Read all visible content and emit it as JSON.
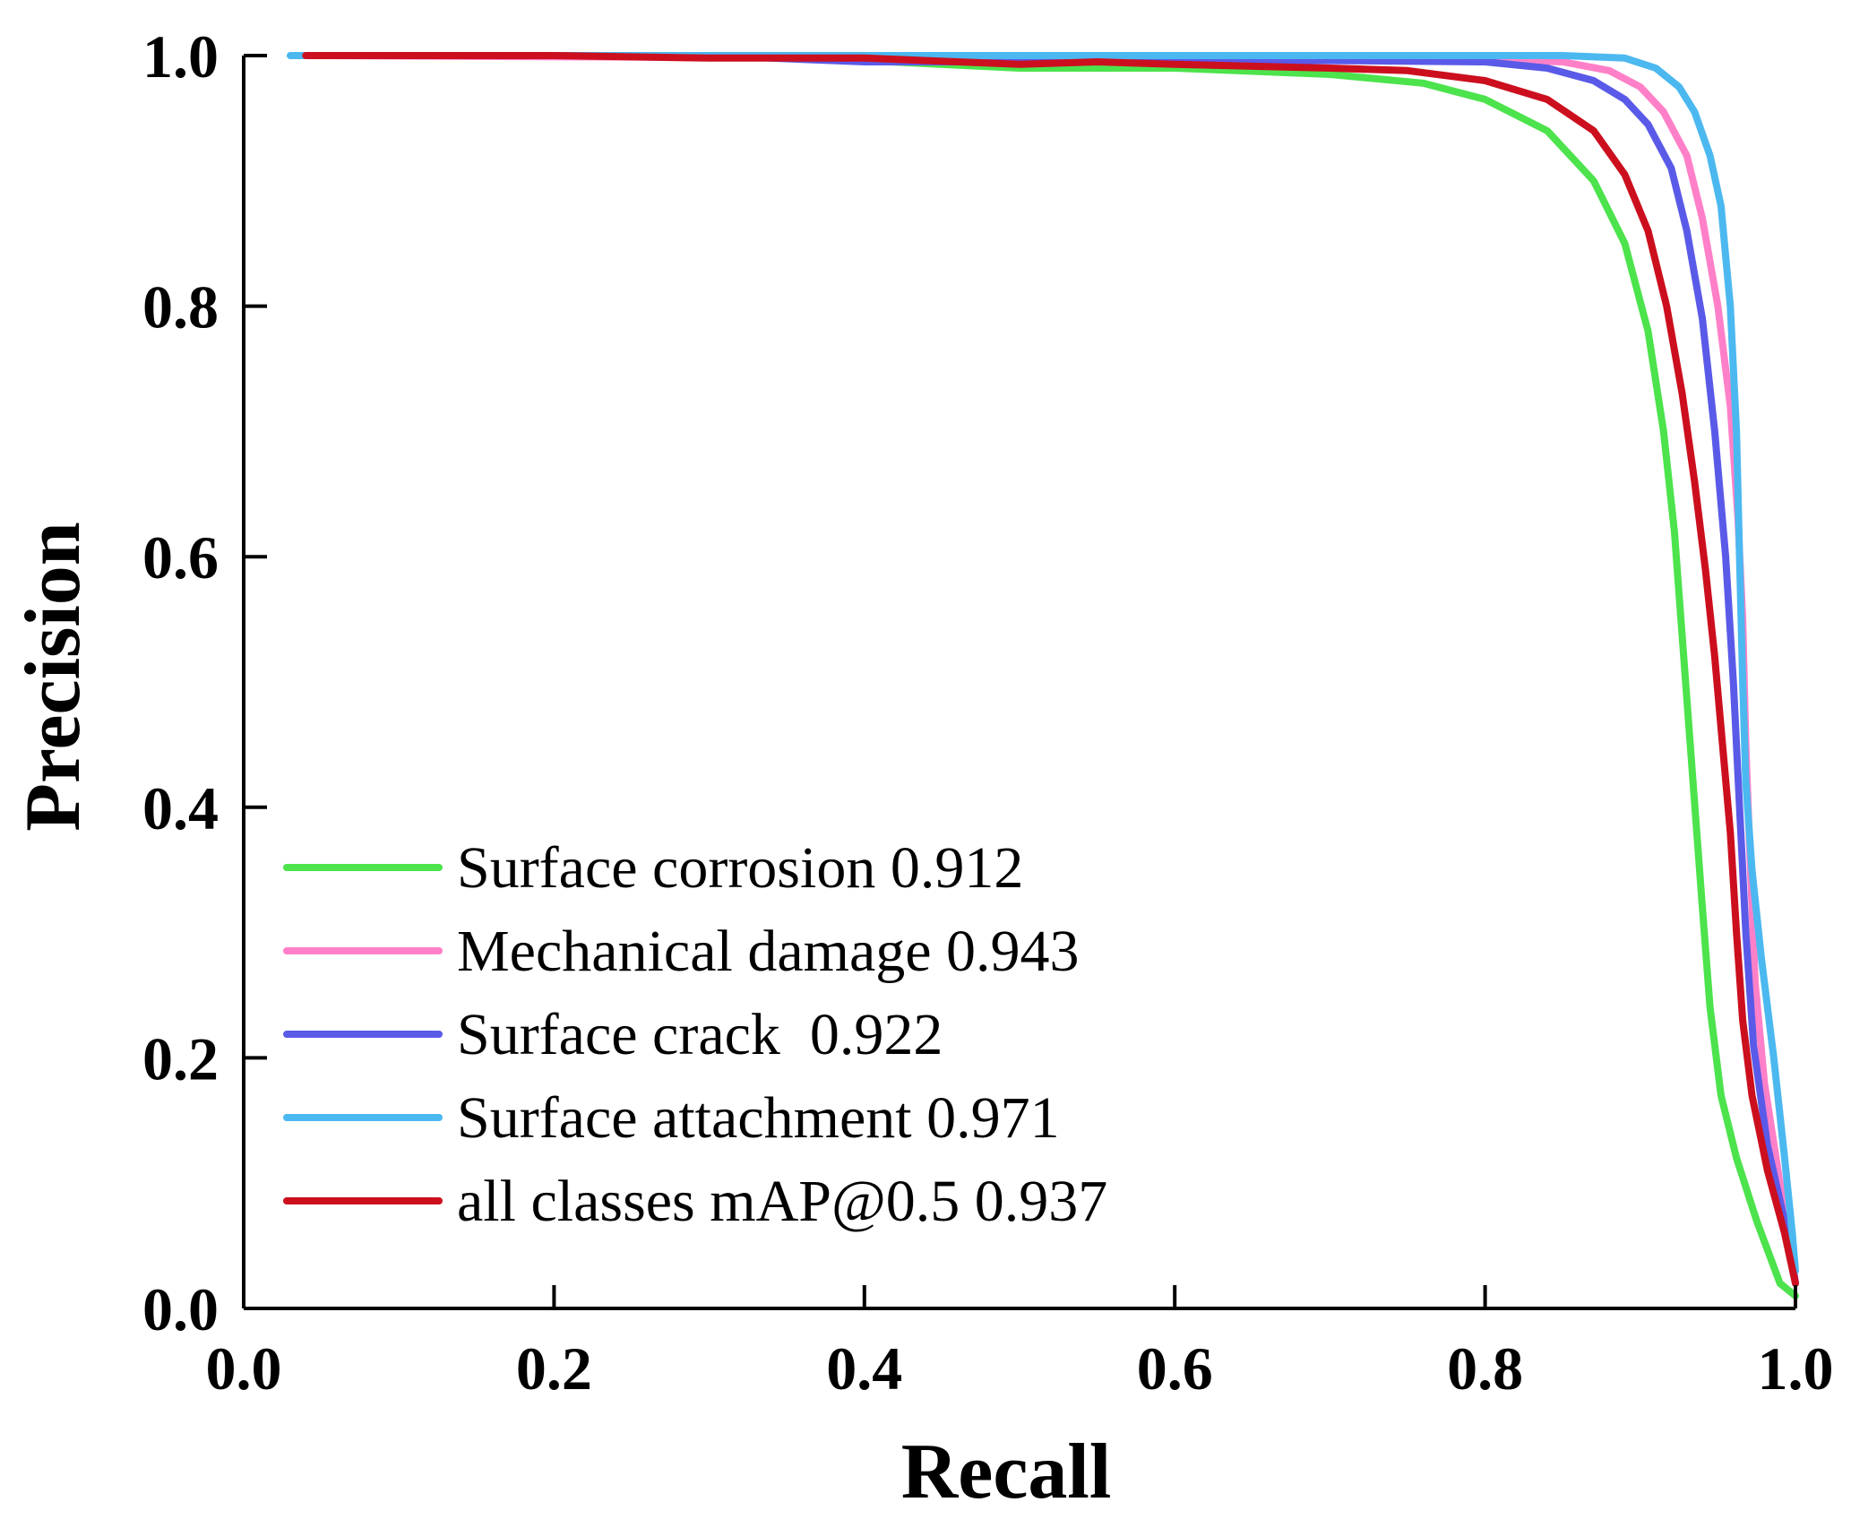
{
  "chart_data": {
    "type": "line",
    "xlabel": "Recall",
    "ylabel": "Precision",
    "xlim": [
      0.0,
      1.0
    ],
    "ylim": [
      0.0,
      1.0
    ],
    "grid": false,
    "legend_position": "bottom-left",
    "x_ticks": [
      "0.0",
      "0.2",
      "0.4",
      "0.6",
      "0.8",
      "1.0"
    ],
    "y_ticks": [
      "0.0",
      "0.2",
      "0.4",
      "0.6",
      "0.8",
      "1.0"
    ],
    "series": [
      {
        "name": "Surface corrosion 0.912",
        "color": "#4ce34c",
        "points": [
          [
            0.04,
            1.0
          ],
          [
            0.2,
            1.0
          ],
          [
            0.3,
            1.0
          ],
          [
            0.4,
            0.996
          ],
          [
            0.5,
            0.99
          ],
          [
            0.6,
            0.99
          ],
          [
            0.7,
            0.985
          ],
          [
            0.76,
            0.978
          ],
          [
            0.8,
            0.965
          ],
          [
            0.84,
            0.94
          ],
          [
            0.87,
            0.9
          ],
          [
            0.89,
            0.85
          ],
          [
            0.905,
            0.78
          ],
          [
            0.915,
            0.7
          ],
          [
            0.922,
            0.62
          ],
          [
            0.928,
            0.52
          ],
          [
            0.934,
            0.42
          ],
          [
            0.94,
            0.32
          ],
          [
            0.945,
            0.24
          ],
          [
            0.952,
            0.17
          ],
          [
            0.962,
            0.12
          ],
          [
            0.975,
            0.07
          ],
          [
            0.99,
            0.02
          ],
          [
            1.0,
            0.01
          ]
        ]
      },
      {
        "name": "Mechanical damage 0.943",
        "color": "#ff80c8",
        "points": [
          [
            0.04,
            1.0
          ],
          [
            0.4,
            0.998
          ],
          [
            0.6,
            0.998
          ],
          [
            0.8,
            0.997
          ],
          [
            0.85,
            0.995
          ],
          [
            0.88,
            0.988
          ],
          [
            0.9,
            0.975
          ],
          [
            0.915,
            0.955
          ],
          [
            0.93,
            0.92
          ],
          [
            0.94,
            0.87
          ],
          [
            0.95,
            0.8
          ],
          [
            0.958,
            0.72
          ],
          [
            0.963,
            0.63
          ],
          [
            0.966,
            0.55
          ],
          [
            0.968,
            0.45
          ],
          [
            0.971,
            0.35
          ],
          [
            0.974,
            0.26
          ],
          [
            0.98,
            0.18
          ],
          [
            0.99,
            0.1
          ],
          [
            0.997,
            0.05
          ],
          [
            1.0,
            0.02
          ]
        ]
      },
      {
        "name": "Surface crack  0.922",
        "color": "#5a5ae8",
        "points": [
          [
            0.04,
            1.0
          ],
          [
            0.3,
            1.0
          ],
          [
            0.4,
            0.995
          ],
          [
            0.5,
            0.995
          ],
          [
            0.6,
            0.996
          ],
          [
            0.7,
            0.996
          ],
          [
            0.8,
            0.995
          ],
          [
            0.84,
            0.99
          ],
          [
            0.87,
            0.98
          ],
          [
            0.89,
            0.965
          ],
          [
            0.905,
            0.945
          ],
          [
            0.92,
            0.91
          ],
          [
            0.93,
            0.86
          ],
          [
            0.94,
            0.79
          ],
          [
            0.948,
            0.7
          ],
          [
            0.955,
            0.6
          ],
          [
            0.96,
            0.5
          ],
          [
            0.964,
            0.4
          ],
          [
            0.968,
            0.3
          ],
          [
            0.973,
            0.21
          ],
          [
            0.982,
            0.13
          ],
          [
            0.993,
            0.07
          ],
          [
            1.0,
            0.02
          ]
        ]
      },
      {
        "name": "Surface attachment 0.971",
        "color": "#4cb8f0",
        "points": [
          [
            0.03,
            1.0
          ],
          [
            0.3,
            1.0
          ],
          [
            0.5,
            1.0
          ],
          [
            0.7,
            1.0
          ],
          [
            0.85,
            1.0
          ],
          [
            0.89,
            0.998
          ],
          [
            0.91,
            0.99
          ],
          [
            0.925,
            0.975
          ],
          [
            0.935,
            0.955
          ],
          [
            0.945,
            0.92
          ],
          [
            0.952,
            0.88
          ],
          [
            0.958,
            0.8
          ],
          [
            0.962,
            0.7
          ],
          [
            0.964,
            0.6
          ],
          [
            0.966,
            0.5
          ],
          [
            0.968,
            0.42
          ],
          [
            0.972,
            0.35
          ],
          [
            0.978,
            0.28
          ],
          [
            0.986,
            0.2
          ],
          [
            0.993,
            0.12
          ],
          [
            0.998,
            0.06
          ],
          [
            1.0,
            0.03
          ]
        ]
      },
      {
        "name": "all classes mAP@0.5 0.937",
        "color": "#cc0f1e",
        "points": [
          [
            0.04,
            1.0
          ],
          [
            0.2,
            1.0
          ],
          [
            0.3,
            0.998
          ],
          [
            0.4,
            0.998
          ],
          [
            0.5,
            0.993
          ],
          [
            0.55,
            0.995
          ],
          [
            0.6,
            0.993
          ],
          [
            0.7,
            0.99
          ],
          [
            0.75,
            0.988
          ],
          [
            0.8,
            0.98
          ],
          [
            0.84,
            0.965
          ],
          [
            0.87,
            0.94
          ],
          [
            0.89,
            0.905
          ],
          [
            0.905,
            0.86
          ],
          [
            0.917,
            0.8
          ],
          [
            0.927,
            0.73
          ],
          [
            0.935,
            0.66
          ],
          [
            0.942,
            0.59
          ],
          [
            0.948,
            0.52
          ],
          [
            0.953,
            0.45
          ],
          [
            0.958,
            0.38
          ],
          [
            0.962,
            0.3
          ],
          [
            0.966,
            0.23
          ],
          [
            0.972,
            0.17
          ],
          [
            0.982,
            0.11
          ],
          [
            0.993,
            0.06
          ],
          [
            1.0,
            0.02
          ]
        ]
      }
    ]
  }
}
